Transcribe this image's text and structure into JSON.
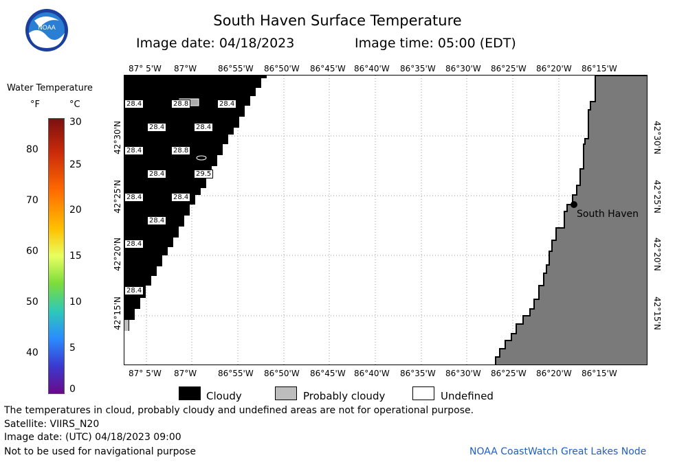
{
  "header": {
    "title": "South Haven Surface Temperature",
    "image_date": "Image date: 04/18/2023",
    "image_time": "Image time: 05:00 (EDT)"
  },
  "logo": {
    "text": "NOAA",
    "icon": "noaa-logo-icon"
  },
  "colorbar": {
    "title": "Water Temperature",
    "unit_f": "°F",
    "unit_c": "°C",
    "f_ticks": [
      "40",
      "50",
      "60",
      "70",
      "80"
    ],
    "c_ticks": [
      "0",
      "5",
      "10",
      "15",
      "20",
      "25",
      "30"
    ]
  },
  "map": {
    "lon_labels": [
      "87° 5'W",
      "87°W",
      "86°55'W",
      "86°50'W",
      "86°45'W",
      "86°40'W",
      "86°35'W",
      "86°30'W",
      "86°25'W",
      "86°20'W",
      "86°15'W"
    ],
    "lat_labels": [
      "42°30'N",
      "42°25'N",
      "42°20'N",
      "42°15'N"
    ],
    "city": "South Haven",
    "colors": {
      "cloud": "#000000",
      "land": "#7a7a7a",
      "water": "#ffffff",
      "probably_cloudy": "#bdbdbd"
    },
    "sst_labels": [
      "28.4",
      "28.8",
      "28.4",
      "28.4",
      "28.4",
      "28.4",
      "28.8",
      "28.4",
      "29.5",
      "28.4",
      "28.4",
      "28.4",
      "28.4",
      "28.4"
    ]
  },
  "legend": {
    "cloudy": "Cloudy",
    "probably_cloudy": "Probably cloudy",
    "undefined": "Undefined"
  },
  "footer": {
    "disclaimer": "The temperatures in cloud, probably cloudy and undefined areas are not for operational purpose.",
    "satellite": "Satellite: VIIRS_N20",
    "utc_date": "Image date: (UTC) 04/18/2023  09:00",
    "nav_warning": "Not to be used for navigational purpose",
    "credit": "NOAA CoastWatch Great Lakes Node"
  }
}
